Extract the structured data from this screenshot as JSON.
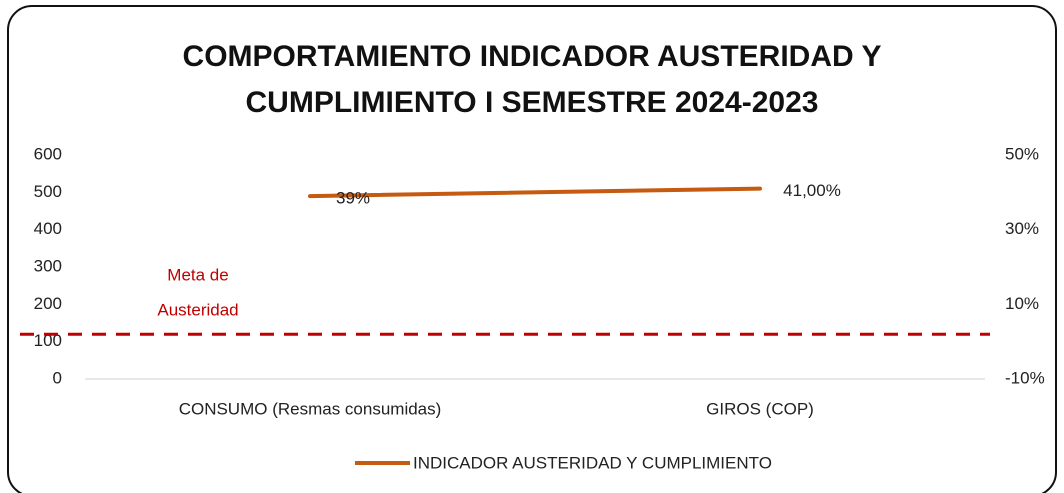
{
  "chart_data": {
    "type": "line",
    "title": [
      "COMPORTAMIENTO INDICADOR AUSTERIDAD Y",
      "CUMPLIMIENTO I SEMESTRE 2024-2023"
    ],
    "categories": [
      "CONSUMO (Resmas consumidas)",
      "GIROS (COP)"
    ],
    "series": [
      {
        "name": "INDICADOR AUSTERIDAD Y CUMPLIMIENTO",
        "color": "#c55a11",
        "axis": "y2",
        "values": [
          39,
          41
        ],
        "value_labels": [
          "39%",
          "41,00%"
        ]
      }
    ],
    "ylim": [
      0,
      600
    ],
    "yticks": [
      0,
      100,
      200,
      300,
      400,
      500,
      600
    ],
    "y2lim": [
      -10,
      50
    ],
    "y2ticks": [
      {
        "value": -10,
        "label": "-10%"
      },
      {
        "value": 10,
        "label": "10%"
      },
      {
        "value": 30,
        "label": "30%"
      },
      {
        "value": 50,
        "label": "50%"
      }
    ],
    "annotation": {
      "lines": [
        "Meta de",
        "Austeridad"
      ],
      "value": 120,
      "color": "#c00000"
    },
    "legend": "bottom"
  }
}
